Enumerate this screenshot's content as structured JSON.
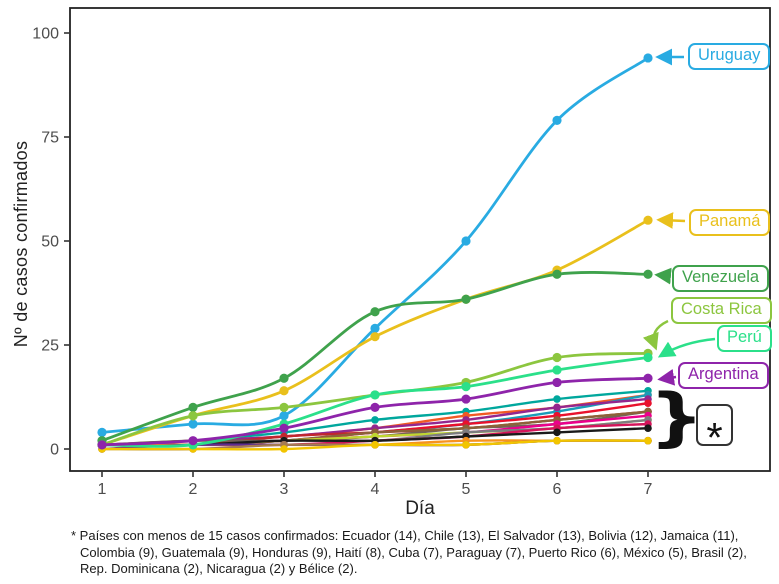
{
  "figure": {
    "y_axis": {
      "title": "Nº de casos confirmados",
      "ticks": [
        0,
        25,
        50,
        75,
        100
      ]
    },
    "x_axis": {
      "title": "Día",
      "ticks": [
        1,
        2,
        3,
        4,
        5,
        6,
        7
      ]
    },
    "annotations": {
      "brace_glyph": "}",
      "asterisk_glyph": "*"
    },
    "footnote": "* Países con menos de 15 casos confirmados: Ecuador (14), Chile (13), El Salvador (13), Bolivia (12), Jamaica (11), Colombia (9), Guatemala (9), Honduras (9), Haití (8), Cuba (7), Paraguay (7), Puerto Rico (6), México (5), Brasil (2), Rep. Dominicana (2), Nicaragua (2) y Bélice (2)."
  },
  "chart_data": {
    "type": "line",
    "title": "",
    "xlabel": "Día",
    "ylabel": "Nº de casos confirmados",
    "x": [
      1,
      2,
      3,
      4,
      5,
      6,
      7
    ],
    "xlim": [
      1,
      7
    ],
    "ylim": [
      0,
      100
    ],
    "y_ticks": [
      0,
      25,
      50,
      75,
      100
    ],
    "grid": false,
    "legend_position": "right-side callout labels with arrows",
    "labeled_series": [
      {
        "name": "Uruguay",
        "color": "#29ABE2",
        "values": [
          4,
          6,
          8,
          29,
          50,
          79,
          94
        ]
      },
      {
        "name": "Panamá",
        "color": "#E9C01C",
        "values": [
          1,
          8,
          14,
          27,
          36,
          43,
          55
        ]
      },
      {
        "name": "Venezuela",
        "color": "#3FA24C",
        "values": [
          2,
          10,
          17,
          33,
          36,
          42,
          42
        ]
      },
      {
        "name": "Costa Rica",
        "color": "#8CC63F",
        "values": [
          1,
          8,
          10,
          13,
          16,
          22,
          23
        ]
      },
      {
        "name": "Perú",
        "color": "#2BE08A",
        "values": [
          1,
          1,
          6,
          13,
          15,
          19,
          22
        ]
      },
      {
        "name": "Argentina",
        "color": "#8E24AA",
        "values": [
          1,
          2,
          5,
          10,
          12,
          16,
          17
        ]
      }
    ],
    "unlabeled_series_note": "países con menos de 15 casos confirmados (values at day 7 from footnote; earlier days estimated)",
    "unlabeled_series": [
      {
        "name": "Ecuador",
        "color": "#00A79D",
        "values": [
          1,
          2,
          4,
          7,
          9,
          12,
          14
        ]
      },
      {
        "name": "Chile",
        "color": "#F15A24",
        "values": [
          1,
          2,
          3,
          5,
          8,
          10,
          13
        ]
      },
      {
        "name": "El Salvador",
        "color": "#1B9CB8",
        "values": [
          1,
          1,
          2,
          4,
          6,
          9,
          13
        ]
      },
      {
        "name": "Bolivia",
        "color": "#93278F",
        "values": [
          1,
          2,
          3,
          5,
          7,
          10,
          12
        ]
      },
      {
        "name": "Jamaica",
        "color": "#E8112D",
        "values": [
          1,
          1,
          2,
          4,
          6,
          8,
          11
        ]
      },
      {
        "name": "Colombia",
        "color": "#C1272D",
        "values": [
          1,
          1,
          3,
          4,
          5,
          7,
          9
        ]
      },
      {
        "name": "Guatemala",
        "color": "#736357",
        "values": [
          1,
          2,
          2,
          3,
          5,
          6,
          9
        ]
      },
      {
        "name": "Honduras",
        "color": "#8C6239",
        "values": [
          1,
          1,
          2,
          4,
          5,
          7,
          9
        ]
      },
      {
        "name": "Haití",
        "color": "#EC008C",
        "values": [
          1,
          1,
          2,
          3,
          4,
          6,
          8
        ]
      },
      {
        "name": "Cuba",
        "color": "#BFD730",
        "values": [
          1,
          1,
          2,
          3,
          4,
          5,
          7
        ]
      },
      {
        "name": "Paraguay",
        "color": "#7D7D80",
        "values": [
          1,
          1,
          2,
          2,
          4,
          5,
          7
        ]
      },
      {
        "name": "Puerto Rico",
        "color": "#D4145A",
        "values": [
          1,
          1,
          1,
          2,
          3,
          5,
          6
        ]
      },
      {
        "name": "México",
        "color": "#1A1A1A",
        "values": [
          1,
          1,
          2,
          2,
          3,
          4,
          5
        ]
      },
      {
        "name": "Brasil",
        "color": "#F7931E",
        "values": [
          1,
          1,
          1,
          1,
          2,
          2,
          2
        ]
      },
      {
        "name": "Rep. Dominicana",
        "color": "#5E2D91",
        "values": [
          0,
          1,
          1,
          1,
          1,
          2,
          2
        ]
      },
      {
        "name": "Nicaragua",
        "color": "#A67C52",
        "values": [
          0,
          0,
          1,
          1,
          1,
          2,
          2
        ]
      },
      {
        "name": "Bélice",
        "color": "#F2C500",
        "values": [
          0,
          0,
          0,
          1,
          1,
          2,
          2
        ]
      }
    ]
  }
}
